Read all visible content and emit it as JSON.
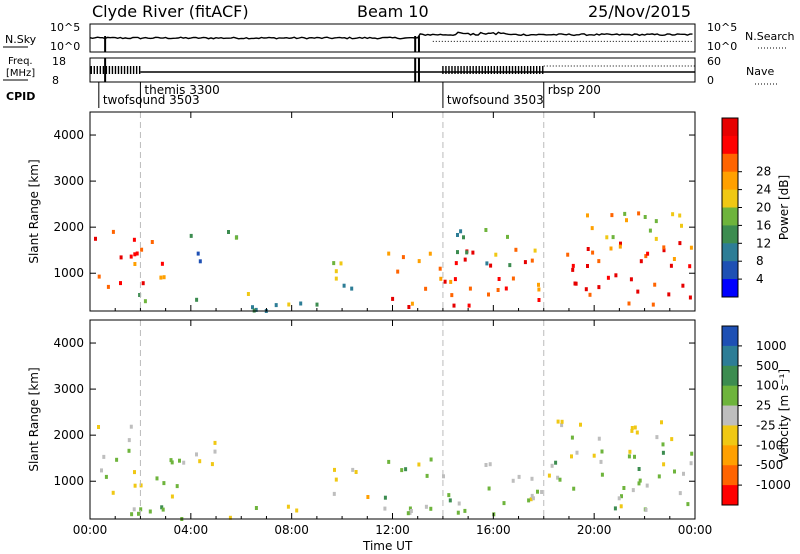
{
  "header": {
    "station": "Clyde River (fitACF)",
    "beam": "Beam 10",
    "date": "25/Nov/2015"
  },
  "nsky_panel": {
    "left_label": "N.Sky",
    "left_ticks": [
      "10^5",
      "10^0"
    ],
    "right_label": "N.Search",
    "right_ticks": [
      "10^5",
      "10^0"
    ]
  },
  "freq_panel": {
    "left_label_line1": "Freq.",
    "left_label_line2": "[MHz]",
    "left_ticks": [
      "18",
      "8"
    ],
    "right_label": "Nave",
    "right_ticks": [
      "60",
      "0"
    ]
  },
  "cpid": {
    "label": "CPID",
    "programs": [
      {
        "name": "twofsound",
        "id": "3503",
        "start_hour": 0.35,
        "row": "lower"
      },
      {
        "name": "themis",
        "id": "3300",
        "start_hour": 2.0,
        "row": "upper"
      },
      {
        "name": "twofsound",
        "id": "3503",
        "start_hour": 14.0,
        "row": "lower"
      },
      {
        "name": "rbsp",
        "id": "200",
        "start_hour": 18.0,
        "row": "upper"
      }
    ]
  },
  "chart_data": [
    {
      "type": "heatmap",
      "name": "power",
      "xlabel": "Time UT",
      "ylabel": "Slant Range [km]",
      "xlim": [
        0,
        24
      ],
      "ylim": [
        180,
        4500
      ],
      "x_ticks": [
        "00:00",
        "04:00",
        "08:00",
        "12:00",
        "16:00",
        "20:00",
        "00:00"
      ],
      "y_ticks": [
        1000,
        2000,
        3000,
        4000
      ],
      "colorbar_label": "Power [dB]",
      "colorbar_ticks": [
        "4",
        "8",
        "12",
        "16",
        "20",
        "24",
        "28"
      ],
      "colorbar_colors": [
        "#0000ff",
        "#1e50b4",
        "#2d7d96",
        "#3c8c50",
        "#6eb43c",
        "#f0c814",
        "#ffa000",
        "#ff6400",
        "#ff0000",
        "#e60000"
      ],
      "value_range": [
        0,
        30
      ],
      "regions": [
        {
          "t0": 0.0,
          "t1": 3.6,
          "r0": 700,
          "r1": 1800,
          "value": 24
        },
        {
          "t0": 3.6,
          "t1": 5.8,
          "r0": 1300,
          "r1": 1950,
          "value": 10
        },
        {
          "t0": 0.2,
          "t1": 1.2,
          "r0": 1900,
          "r1": 2200,
          "value": 18
        },
        {
          "t0": 1.5,
          "t1": 9.0,
          "r0": 200,
          "r1": 600,
          "value": 12
        },
        {
          "t0": 9.5,
          "t1": 11.5,
          "r0": 700,
          "r1": 1500,
          "value": 12
        },
        {
          "t0": 11.5,
          "t1": 18.0,
          "r0": 300,
          "r1": 1600,
          "value": 24
        },
        {
          "t0": 14.5,
          "t1": 18.0,
          "r0": 1200,
          "r1": 2000,
          "value": 12
        },
        {
          "t0": 18.0,
          "t1": 24.0,
          "r0": 350,
          "r1": 1700,
          "value": 26
        },
        {
          "t0": 18.5,
          "t1": 23.5,
          "r0": 1500,
          "r1": 2400,
          "value": 18
        }
      ]
    },
    {
      "type": "heatmap",
      "name": "velocity",
      "xlabel": "Time UT",
      "ylabel": "Slant Range [km]",
      "xlim": [
        0,
        24
      ],
      "ylim": [
        180,
        4500
      ],
      "x_ticks": [
        "00:00",
        "04:00",
        "08:00",
        "12:00",
        "16:00",
        "20:00",
        "00:00"
      ],
      "y_ticks": [
        1000,
        2000,
        3000,
        4000
      ],
      "colorbar_label": "Velocity [m s⁻¹]",
      "colorbar_ticks": [
        "1000",
        "500",
        "100",
        "25",
        "-25",
        "-100",
        "-500",
        "-1000"
      ],
      "colorbar_colors": [
        "#1e50b4",
        "#2d7d96",
        "#3c8c50",
        "#6eb43c",
        "#bebebe",
        "#f0c814",
        "#ffa000",
        "#ff6400",
        "#ff0000"
      ],
      "value_range": [
        -1000,
        1000
      ],
      "regions": [
        {
          "t0": 0.0,
          "t1": 3.6,
          "r0": 700,
          "r1": 1800,
          "value": 100
        },
        {
          "t0": 3.6,
          "t1": 5.8,
          "r0": 1300,
          "r1": 1950,
          "value": -100
        },
        {
          "t0": 0.2,
          "t1": 2.5,
          "r0": 1900,
          "r1": 2250,
          "value": 0
        },
        {
          "t0": 1.5,
          "t1": 9.0,
          "r0": 200,
          "r1": 600,
          "value": 100
        },
        {
          "t0": 9.5,
          "t1": 11.5,
          "r0": 700,
          "r1": 1500,
          "value": -100
        },
        {
          "t0": 11.5,
          "t1": 18.0,
          "r0": 300,
          "r1": 1600,
          "value": 100
        },
        {
          "t0": 18.0,
          "t1": 24.0,
          "r0": 350,
          "r1": 1700,
          "value": 100
        },
        {
          "t0": 18.5,
          "t1": 23.5,
          "r0": 1500,
          "r1": 2400,
          "value": -100
        }
      ]
    }
  ]
}
